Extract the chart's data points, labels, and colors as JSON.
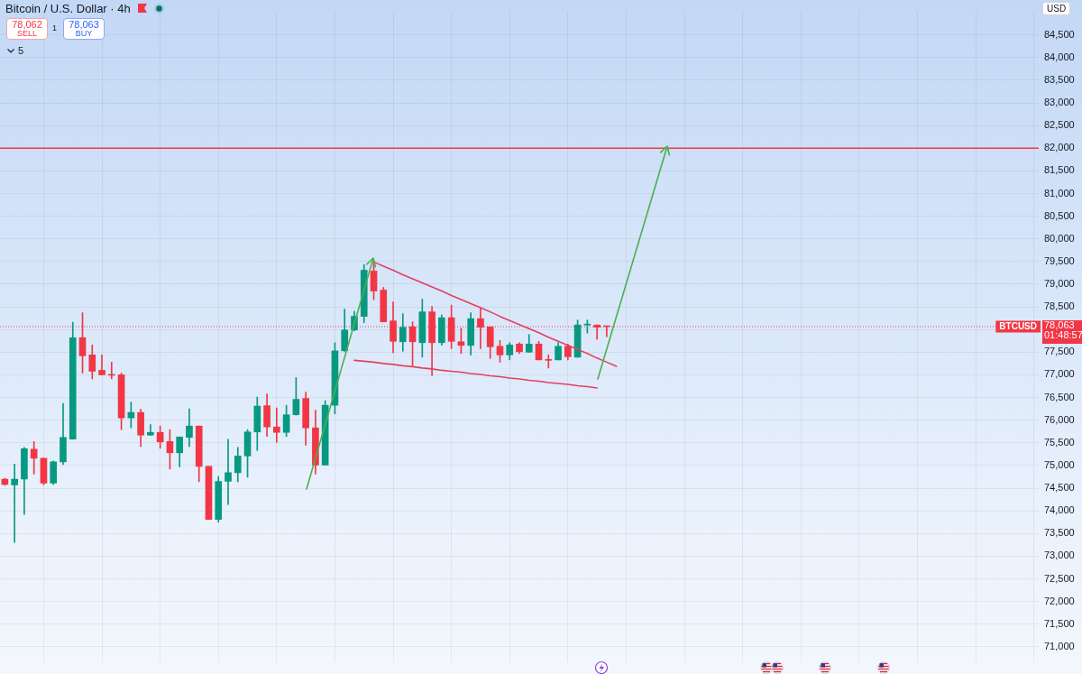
{
  "chart_data": {
    "type": "candlestick",
    "title": "Bitcoin / U.S. Dollar · 4h",
    "categories": [
      null,
      null,
      null,
      null,
      null,
      null,
      null,
      null,
      null,
      null,
      null,
      null,
      null,
      null,
      null,
      null,
      null,
      null,
      null,
      null,
      null,
      null,
      null,
      null,
      null,
      null,
      null,
      null,
      null,
      null,
      null,
      null,
      null,
      null,
      null,
      null,
      null,
      null,
      null,
      null,
      null,
      null,
      null,
      null,
      null,
      null,
      null,
      null,
      null,
      null,
      null,
      null,
      null,
      null,
      null,
      null,
      null,
      null,
      null,
      null,
      null,
      null,
      null,
      null,
      null,
      null,
      null,
      null,
      null,
      null,
      null,
      null,
      null,
      null,
      null,
      null,
      null,
      null,
      null,
      null,
      null,
      null,
      null,
      null,
      null,
      null,
      null,
      null,
      null,
      null,
      null,
      null,
      null,
      null,
      null,
      null,
      null,
      null,
      null,
      null,
      null,
      null,
      null,
      null,
      null,
      null,
      null
    ],
    "ohlc": [
      [
        74700,
        74720,
        74560,
        74580
      ],
      [
        74570,
        75030,
        73300,
        74700
      ],
      [
        74700,
        75400,
        73920,
        75370
      ],
      [
        75360,
        75530,
        74810,
        75160
      ],
      [
        75160,
        75160,
        74570,
        74610
      ],
      [
        74610,
        75100,
        74580,
        75080
      ],
      [
        75080,
        76370,
        75020,
        75620
      ],
      [
        75580,
        78160,
        75580,
        77820
      ],
      [
        77820,
        78370,
        77040,
        77420
      ],
      [
        77440,
        77660,
        76910,
        77080
      ],
      [
        77100,
        77440,
        77000,
        77000
      ],
      [
        77010,
        77280,
        76910,
        76990
      ],
      [
        77000,
        77040,
        75790,
        76050
      ],
      [
        76050,
        76400,
        75830,
        76170
      ],
      [
        76170,
        76240,
        75420,
        75670
      ],
      [
        75670,
        75900,
        75660,
        75730
      ],
      [
        75730,
        75870,
        75380,
        75520
      ],
      [
        75530,
        75790,
        74920,
        75280
      ],
      [
        75280,
        75630,
        74970,
        75630
      ],
      [
        75620,
        76250,
        75420,
        75870
      ],
      [
        75870,
        75870,
        74640,
        74980
      ],
      [
        74980,
        74980,
        73810,
        73810
      ],
      [
        73810,
        74760,
        73750,
        74650
      ],
      [
        74650,
        75580,
        74140,
        74840
      ],
      [
        74840,
        75400,
        74640,
        75210
      ],
      [
        75210,
        75790,
        74740,
        75740
      ],
      [
        75740,
        76510,
        75330,
        76310
      ],
      [
        76320,
        76580,
        75640,
        75850
      ],
      [
        75850,
        76270,
        75510,
        75730
      ],
      [
        75730,
        76330,
        75640,
        76120
      ],
      [
        76120,
        76940,
        76110,
        76460
      ],
      [
        76480,
        76620,
        75450,
        75830
      ],
      [
        75830,
        76220,
        74810,
        75010
      ],
      [
        75010,
        76430,
        75010,
        76330
      ],
      [
        76330,
        77710,
        76140,
        77530
      ],
      [
        77530,
        78450,
        77520,
        77990
      ],
      [
        77990,
        78400,
        77970,
        78290
      ],
      [
        78290,
        79430,
        78150,
        79310
      ],
      [
        79290,
        79500,
        78660,
        78850
      ],
      [
        78870,
        78930,
        78170,
        78170
      ],
      [
        78190,
        78610,
        77490,
        77740
      ],
      [
        77730,
        78350,
        77520,
        78050
      ],
      [
        78060,
        78170,
        77200,
        77730
      ],
      [
        77710,
        78670,
        77390,
        78390
      ],
      [
        78390,
        78510,
        76980,
        77710
      ],
      [
        77710,
        78320,
        77650,
        78260
      ],
      [
        78260,
        78540,
        77580,
        77740
      ],
      [
        77730,
        78030,
        77470,
        77650
      ],
      [
        77650,
        78370,
        77440,
        78240
      ],
      [
        78240,
        78480,
        77580,
        78050
      ],
      [
        78060,
        78060,
        77360,
        77620
      ],
      [
        77630,
        77760,
        77280,
        77440
      ],
      [
        77440,
        77710,
        77330,
        77660
      ],
      [
        77680,
        77710,
        77470,
        77510
      ],
      [
        77500,
        77890,
        77500,
        77680
      ],
      [
        77680,
        77740,
        77330,
        77330
      ],
      [
        77340,
        77440,
        77150,
        77320
      ],
      [
        77330,
        77710,
        77330,
        77630
      ],
      [
        77630,
        77680,
        77330,
        77400
      ],
      [
        77390,
        78210,
        77390,
        78100
      ],
      [
        78100,
        78210,
        77920,
        78120
      ],
      [
        78100,
        78100,
        77780,
        78050
      ],
      [
        78070,
        78070,
        77840,
        78063
      ],
      null,
      null,
      null,
      null,
      null,
      null,
      null,
      null,
      null,
      null,
      null,
      null,
      null,
      null,
      null,
      null,
      null,
      null,
      null,
      null,
      null,
      null,
      null,
      null,
      null,
      null,
      null,
      null,
      null,
      null,
      null,
      null,
      null,
      null,
      null,
      null,
      null,
      null,
      null,
      null,
      null,
      null,
      null,
      null
    ],
    "colors": [
      "#f23645",
      "#089981",
      "#089981",
      "#f23645",
      "#f23645",
      "#089981",
      "#089981",
      "#089981",
      "#f23645",
      "#f23645",
      "#f23645",
      "#f23645",
      "#f23645",
      "#089981",
      "#f23645",
      "#089981",
      "#f23645",
      "#f23645",
      "#089981",
      "#089981",
      "#f23645",
      "#f23645",
      "#089981",
      "#089981",
      "#089981",
      "#089981",
      "#089981",
      "#f23645",
      "#f23645",
      "#089981",
      "#089981",
      "#f23645",
      "#f23645",
      "#089981",
      "#089981",
      "#089981",
      "#089981",
      "#089981",
      "#f23645",
      "#f23645",
      "#f23645",
      "#089981",
      "#f23645",
      "#089981",
      "#f23645",
      "#089981",
      "#f23645",
      "#f23645",
      "#089981",
      "#f23645",
      "#f23645",
      "#f23645",
      "#089981",
      "#f23645",
      "#089981",
      "#f23645",
      "#f23645",
      "#089981",
      "#f23645",
      "#089981",
      "#089981",
      "#f23645",
      "#f23645",
      null,
      null,
      null,
      null,
      null,
      null,
      null,
      null,
      null,
      null,
      null,
      null,
      null,
      null,
      null,
      null,
      null,
      null,
      null,
      null,
      null,
      null,
      null,
      null,
      null,
      null,
      null,
      null,
      null,
      null,
      null,
      null,
      null,
      null,
      null,
      null,
      null,
      null,
      null,
      null,
      null,
      null,
      null,
      null
    ],
    "series": [
      {
        "type": "line",
        "color": "#e4405c",
        "values": [
          null,
          null,
          null,
          null,
          null,
          null,
          null,
          null,
          null,
          null,
          null,
          null,
          null,
          null,
          null,
          null,
          null,
          null,
          null,
          null,
          null,
          null,
          null,
          null,
          null,
          null,
          null,
          null,
          null,
          null,
          null,
          null,
          null,
          null,
          null,
          null,
          null,
          null,
          79490,
          79400,
          79310,
          79210,
          79120,
          79030,
          78940,
          78850,
          78750,
          78660,
          78570,
          78480,
          78390,
          78290,
          78200,
          78110,
          78020,
          77930,
          77830,
          77740,
          77650,
          77560,
          77470,
          77370,
          77280,
          77190,
          null,
          null,
          null,
          null,
          null,
          null,
          null,
          null,
          null,
          null,
          null,
          null,
          null,
          null,
          null,
          null,
          null,
          null,
          null,
          null,
          null,
          null,
          null,
          null,
          null,
          null,
          null,
          null,
          null,
          null,
          null,
          null,
          null,
          null,
          null,
          null,
          null,
          null,
          null,
          null,
          null,
          null,
          null
        ]
      },
      {
        "type": "line",
        "color": "#e4405c",
        "values": [
          null,
          null,
          null,
          null,
          null,
          null,
          null,
          null,
          null,
          null,
          null,
          null,
          null,
          null,
          null,
          null,
          null,
          null,
          null,
          null,
          null,
          null,
          null,
          null,
          null,
          null,
          null,
          null,
          null,
          null,
          null,
          null,
          null,
          null,
          null,
          null,
          77320,
          77300,
          77280,
          77250,
          77230,
          77200,
          77180,
          77150,
          77130,
          77100,
          77080,
          77060,
          77030,
          77010,
          76980,
          76960,
          76930,
          76910,
          76880,
          76860,
          76830,
          76810,
          76790,
          76760,
          76740,
          76710,
          null,
          null,
          null,
          null,
          null,
          null,
          null,
          null,
          null,
          null,
          null,
          null,
          null,
          null,
          null,
          null,
          null,
          null,
          null,
          null,
          null,
          null,
          null,
          null,
          null,
          null,
          null,
          null,
          null,
          null,
          null,
          null,
          null,
          null,
          null,
          null,
          null,
          null,
          null,
          null,
          null,
          null,
          null,
          null,
          null
        ]
      }
    ],
    "ylim": [
      70650,
      85020
    ],
    "yticks": [
      {
        "value": 71000,
        "label": "71,000"
      },
      {
        "value": 71500,
        "label": "71,500"
      },
      {
        "value": 72000,
        "label": "72,000"
      },
      {
        "value": 72500,
        "label": "72,500"
      },
      {
        "value": 73000,
        "label": "73,000"
      },
      {
        "value": 73500,
        "label": "73,500"
      },
      {
        "value": 74000,
        "label": "74,000"
      },
      {
        "value": 74500,
        "label": "74,500"
      },
      {
        "value": 75000,
        "label": "75,000"
      },
      {
        "value": 75500,
        "label": "75,500"
      },
      {
        "value": 76000,
        "label": "76,000"
      },
      {
        "value": 76500,
        "label": "76,500"
      },
      {
        "value": 77000,
        "label": "77,000"
      },
      {
        "value": 77500,
        "label": "77,500"
      },
      {
        "value": 78000,
        "label": null
      },
      {
        "value": 78500,
        "label": "78,500"
      },
      {
        "value": 79000,
        "label": "79,000"
      },
      {
        "value": 79500,
        "label": "79,500"
      },
      {
        "value": 80000,
        "label": "80,000"
      },
      {
        "value": 80500,
        "label": "80,500"
      },
      {
        "value": 81000,
        "label": "81,000"
      },
      {
        "value": 81500,
        "label": "81,500"
      },
      {
        "value": 82000,
        "label": "82,000"
      },
      {
        "value": 82500,
        "label": "82,500"
      },
      {
        "value": 83000,
        "label": "83,000"
      },
      {
        "value": 83500,
        "label": "83,500"
      },
      {
        "value": 84000,
        "label": "84,000"
      },
      {
        "value": 84500,
        "label": "84,500"
      }
    ],
    "grid": true,
    "tick_labels": "y",
    "ref_lines": [
      {
        "axis": "y",
        "value": 82000,
        "color": "#f23645",
        "line_style": "solid"
      },
      {
        "axis": "y",
        "value": 78063,
        "label": "BTCUSD",
        "color": "#f23645",
        "line_style": "dotted"
      }
    ],
    "annotations": [
      "78,062",
      "SELL",
      "1",
      "78,063",
      "BUY",
      "5",
      "USD",
      "78,063",
      "01:48:57"
    ]
  }
}
